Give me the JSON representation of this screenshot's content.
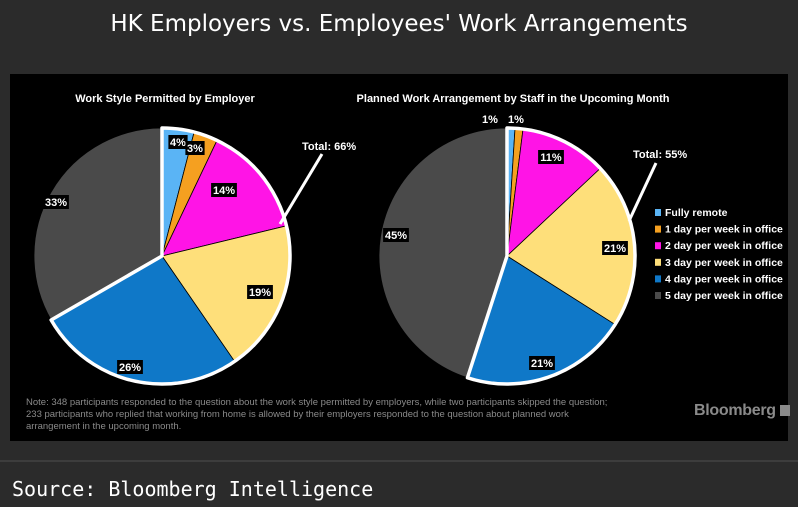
{
  "header": {
    "title": "HK Employers vs. Employees' Work Arrangements"
  },
  "legend": {
    "items": [
      {
        "label": "Fully remote",
        "color": "#5ab4f5"
      },
      {
        "label": "1 day per week in office",
        "color": "#f5a020"
      },
      {
        "label": "2 day per week in office",
        "color": "#ff14e6"
      },
      {
        "label": "3 day per week in office",
        "color": "#fedf7a"
      },
      {
        "label": "4 day per week in office",
        "color": "#0f78c8"
      },
      {
        "label": "5 day per week in office",
        "color": "#4a4a4a"
      }
    ]
  },
  "chart_data": [
    {
      "type": "pie",
      "title": "Work Style Permitted by Employer",
      "categories": [
        "Fully remote",
        "1 day per week in office",
        "2 day per week in office",
        "3 day per week in office",
        "4 day per week in office",
        "5 day per week in office"
      ],
      "values": [
        4,
        3,
        14,
        19,
        26,
        33
      ],
      "labels": [
        "4%",
        "3%",
        "14%",
        "19%",
        "26%",
        "33%"
      ],
      "annotation": "Total: 66%"
    },
    {
      "type": "pie",
      "title": "Planned Work Arrangement by Staff in the Upcoming Month",
      "categories": [
        "Fully remote",
        "1 day per week in office",
        "2 day per week in office",
        "3 day per week in office",
        "4 day per week in office",
        "5 day per week in office"
      ],
      "values": [
        1,
        1,
        11,
        21,
        21,
        45
      ],
      "labels": [
        "1%",
        "1%",
        "11%",
        "21%",
        "21%",
        "45%"
      ],
      "annotation": "Total: 55%"
    }
  ],
  "note": "Note: 348 participants responded to the question about the work style permitted by employers, while two participants skipped the question; 233 participants who replied that working from home is allowed by their employers responded to the question about planned work arrangement in the upcoming month.",
  "branding": {
    "logo": "Bloomberg"
  },
  "footer": {
    "source": "Source: Bloomberg Intelligence"
  }
}
